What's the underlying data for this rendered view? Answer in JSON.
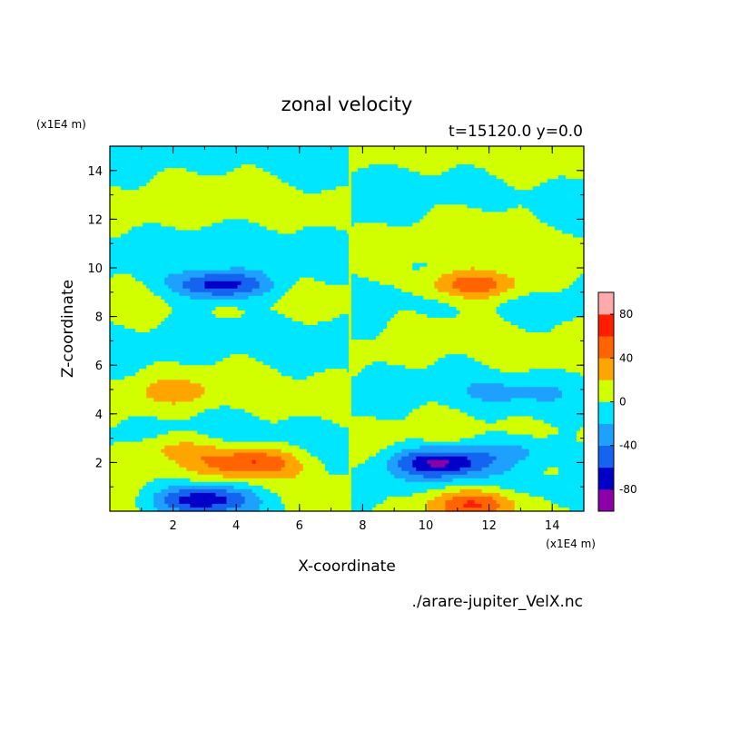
{
  "chart_data": {
    "type": "heatmap",
    "title": "zonal velocity",
    "subtitle": "t=15120.0 y=0.0",
    "xlabel": "X-coordinate",
    "ylabel": "Z-coordinate",
    "x_unit": "(x1E4 m)",
    "z_unit": "(x1E4 m)",
    "xlim": [
      0,
      15
    ],
    "zlim": [
      0,
      15
    ],
    "xticks": [
      "2",
      "4",
      "6",
      "8",
      "10",
      "12",
      "14"
    ],
    "zticks": [
      "2",
      "4",
      "6",
      "8",
      "10",
      "12",
      "14"
    ],
    "file_label": "./arare-jupiter_VelX.nc",
    "colorbar": {
      "range": [
        -100,
        100
      ],
      "step": 20,
      "tick_labels": [
        "80",
        "40",
        "0",
        "-40",
        "-80"
      ],
      "colors": [
        "#8b00a8",
        "#0000c8",
        "#1464f0",
        "#1ea0ff",
        "#00e6ff",
        "#d2ff00",
        "#ffa500",
        "#ff6400",
        "#ff1e00",
        "#ffaaaa"
      ]
    },
    "features": [
      {
        "x": 3.5,
        "z": 9.3,
        "value": -80
      },
      {
        "x": 11.5,
        "z": 9.3,
        "value": 60
      },
      {
        "x": 2.2,
        "z": 4.9,
        "value": 20
      },
      {
        "x": 12.8,
        "z": 4.9,
        "value": -20
      },
      {
        "x": 2.0,
        "z": 2.5,
        "value": 30
      },
      {
        "x": 13.0,
        "z": 2.5,
        "value": -30
      },
      {
        "x": 4.5,
        "z": 2.0,
        "value": 60
      },
      {
        "x": 10.5,
        "z": 2.0,
        "value": -80
      },
      {
        "x": 3.0,
        "z": 0.5,
        "value": -80
      },
      {
        "x": 11.5,
        "z": 0.3,
        "value": 60
      },
      {
        "x": 7.5,
        "z": 7.5,
        "value": -10
      },
      {
        "x": 3.0,
        "z": 12.3,
        "value": 10
      },
      {
        "x": 12.0,
        "z": 12.3,
        "value": 10
      },
      {
        "x": 7.5,
        "z": 13.8,
        "value": -10
      }
    ]
  }
}
